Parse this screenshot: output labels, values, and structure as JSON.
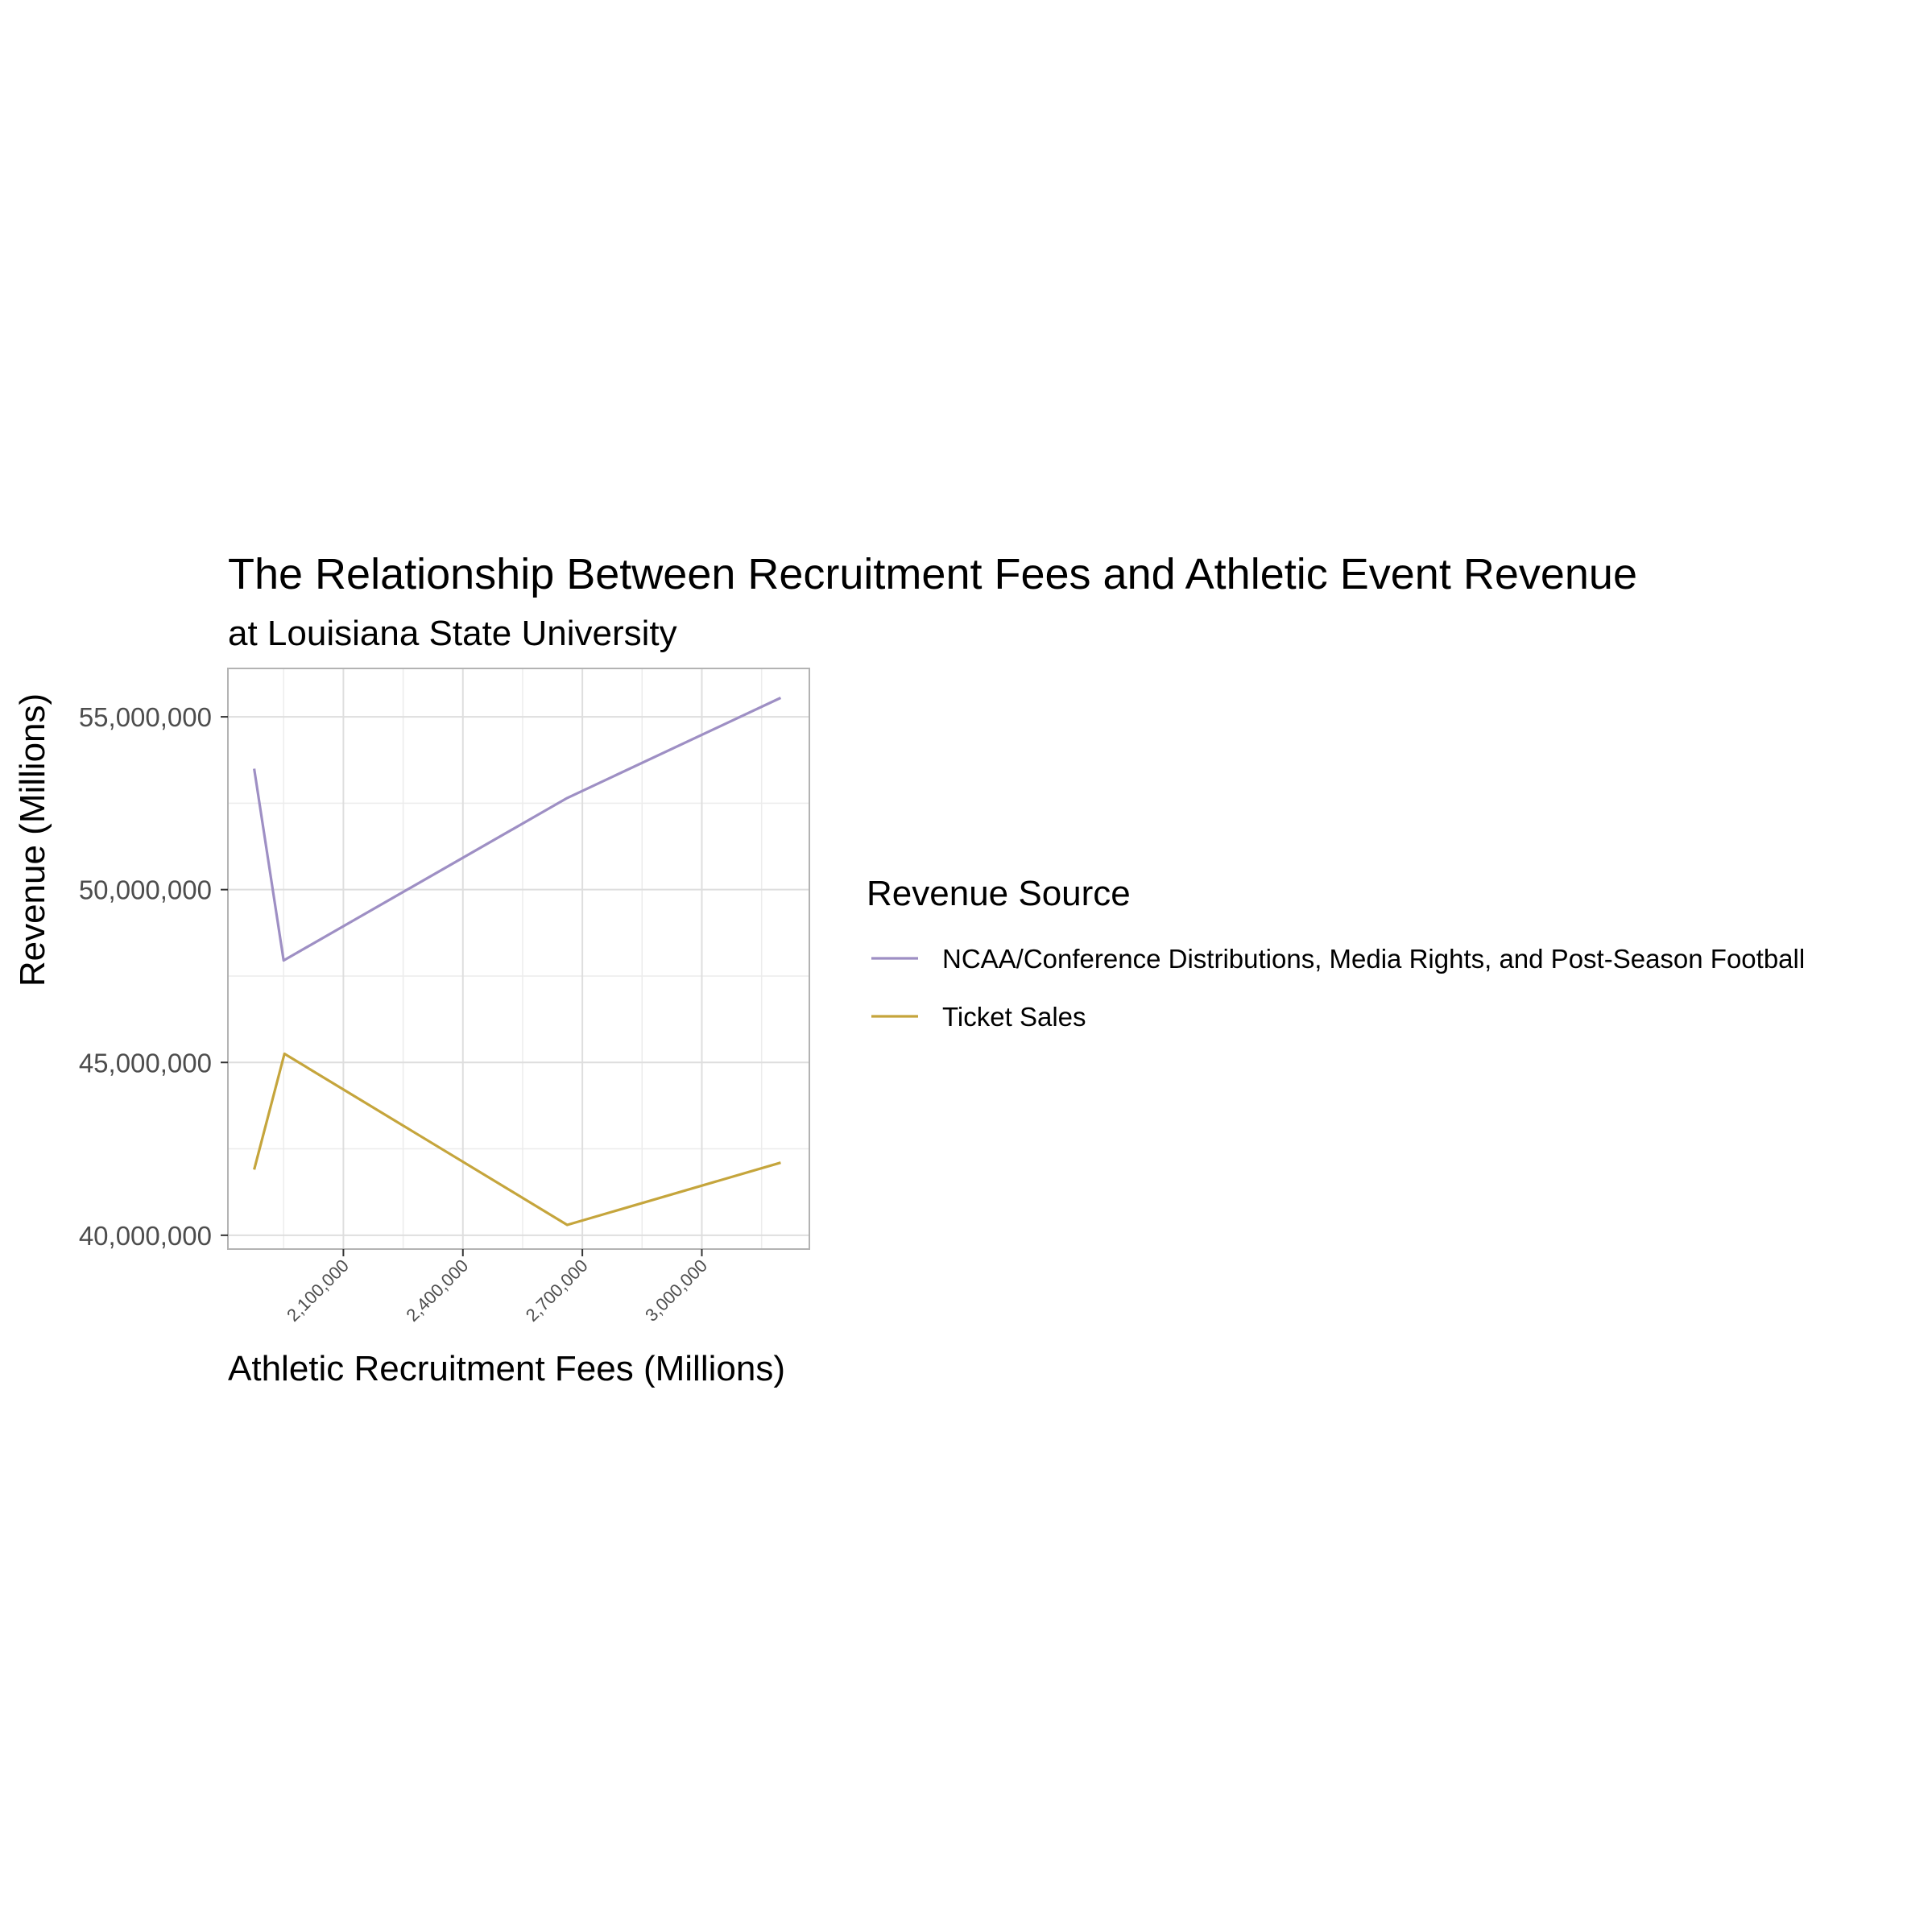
{
  "chart_data": {
    "type": "line",
    "title": "The Relationship Between Recruitment Fees and Athletic Event Revenue",
    "subtitle": "at Louisiana State University",
    "xlabel": "Athletic Recruitment Fees (Millions)",
    "ylabel": "Revenue (Millions)",
    "xlim": [
      1810000,
      3270000
    ],
    "ylim": [
      39600000,
      56400000
    ],
    "x_ticks": [
      2100000,
      2400000,
      2700000,
      3000000
    ],
    "x_tick_labels": [
      "2,100,000",
      "2,400,000",
      "2,700,000",
      "3,000,000"
    ],
    "x_minor_ticks": [
      1950000,
      2250000,
      2550000,
      2850000,
      3150000
    ],
    "y_ticks": [
      40000000,
      45000000,
      50000000,
      55000000
    ],
    "y_tick_labels": [
      "40,000,000",
      "45,000,000",
      "50,000,000",
      "55,000,000"
    ],
    "y_minor_ticks": [
      42500000,
      47500000,
      52500000
    ],
    "grid": true,
    "legend": {
      "title": "Revenue Source",
      "position": "right"
    },
    "series": [
      {
        "name": "NCAA/Conference Distributions, Media Rights, and Post-Season Football",
        "color": "#9e8fc4",
        "points": [
          {
            "x": 1876000,
            "y": 53500000
          },
          {
            "x": 1950000,
            "y": 47950000
          },
          {
            "x": 2662000,
            "y": 52650000
          },
          {
            "x": 3198000,
            "y": 55550000
          }
        ]
      },
      {
        "name": "Ticket Sales",
        "color": "#c5a53c",
        "points": [
          {
            "x": 1876000,
            "y": 41900000
          },
          {
            "x": 1952000,
            "y": 45250000
          },
          {
            "x": 2662000,
            "y": 40300000
          },
          {
            "x": 3198000,
            "y": 42100000
          }
        ]
      }
    ]
  }
}
